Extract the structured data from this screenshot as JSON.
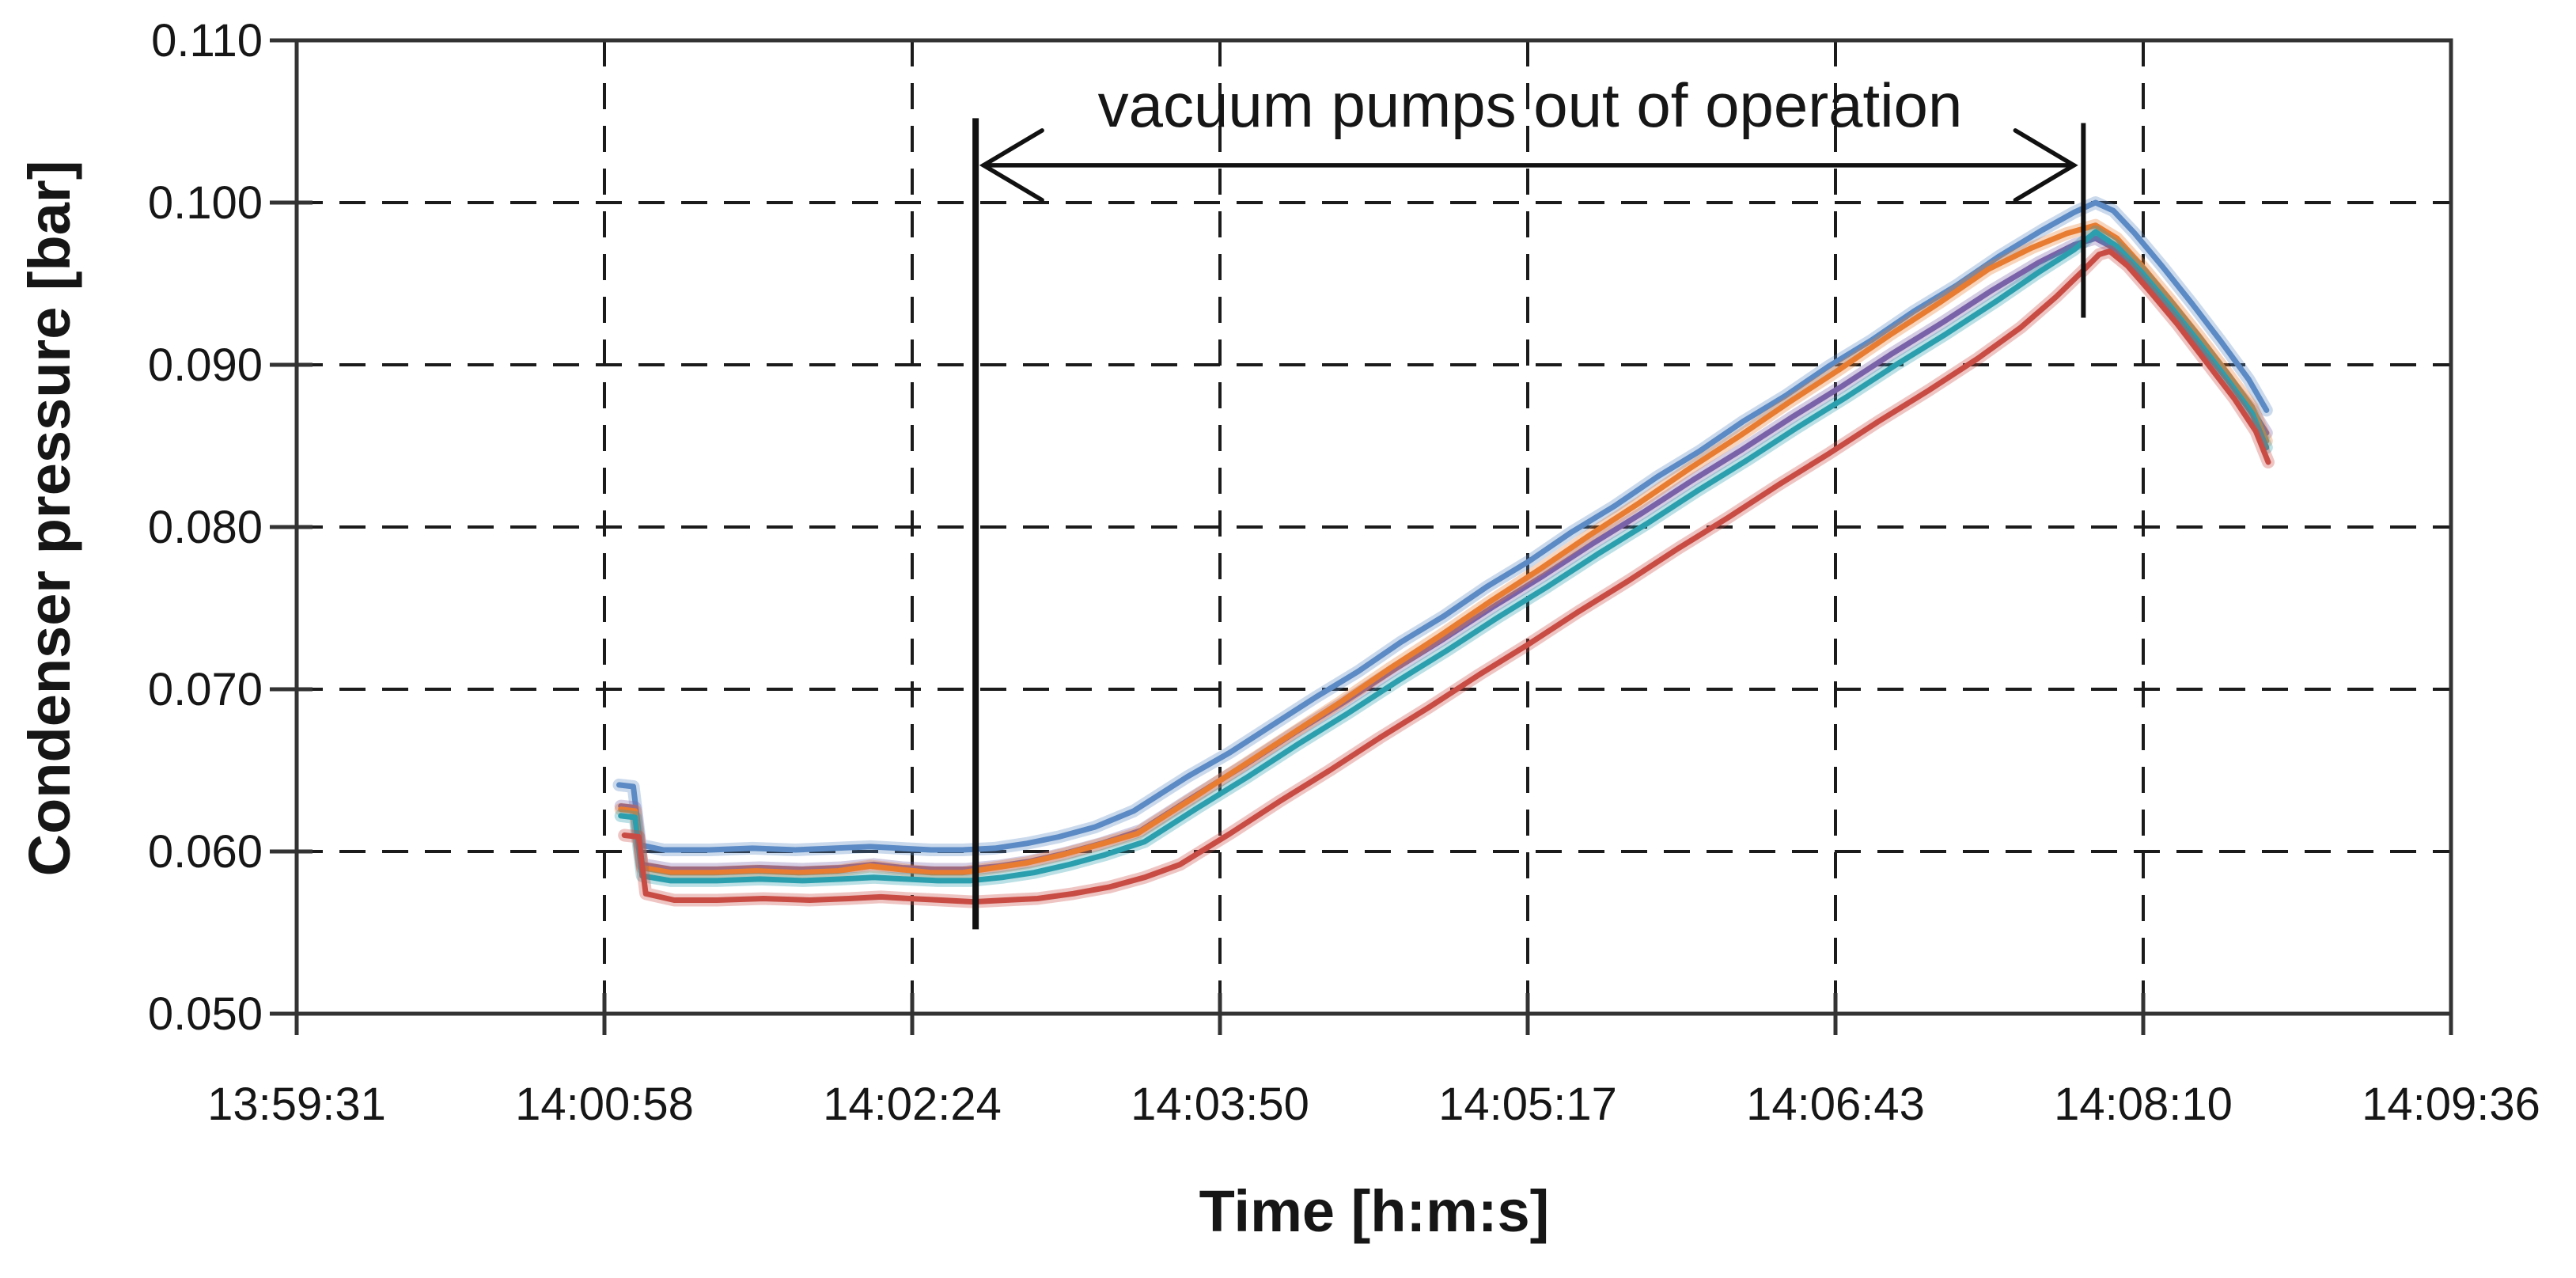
{
  "chart_data": {
    "type": "line",
    "title": "",
    "xlabel": "Time [h:m:s]",
    "ylabel": "Condenser pressure [bar]",
    "legend": "none",
    "grid": "dashed-black",
    "x_axis": {
      "tick_labels": [
        "13:59:31",
        "14:00:58",
        "14:02:24",
        "14:03:50",
        "14:05:17",
        "14:06:43",
        "14:08:10",
        "14:09:36"
      ],
      "tick_seconds": [
        0,
        86.4,
        172.8,
        259.2,
        345.6,
        432.0,
        518.4,
        604.8
      ],
      "range_seconds": [
        0,
        604.8
      ]
    },
    "y_axis": {
      "tick_labels": [
        "0.050",
        "0.060",
        "0.070",
        "0.080",
        "0.090",
        "0.100",
        "0.110"
      ],
      "tick_values": [
        0.05,
        0.06,
        0.07,
        0.08,
        0.09,
        0.1,
        0.11
      ],
      "ylim": [
        0.05,
        0.11
      ]
    },
    "annotation": {
      "label": "vacuum pumps out of operation",
      "label_value_bar": 0.106,
      "arrow_value_bar": 0.1023,
      "span_start_s": 190.6,
      "span_end_s": 501.6,
      "left_line": {
        "s": 190.6,
        "v_top": 0.1052,
        "v_bottom": 0.0552
      },
      "right_line": {
        "s": 501.6,
        "v_top": 0.1049,
        "v_bottom": 0.0929
      }
    },
    "series": [
      {
        "name": "blue",
        "color": "#5b8ac4",
        "points": [
          [
            90.5,
            0.0641
          ],
          [
            94.5,
            0.064
          ],
          [
            96.5,
            0.0604
          ],
          [
            103,
            0.0601
          ],
          [
            116,
            0.0601
          ],
          [
            128,
            0.0602
          ],
          [
            140,
            0.0601
          ],
          [
            151,
            0.0602
          ],
          [
            161,
            0.0603
          ],
          [
            169,
            0.0602
          ],
          [
            178,
            0.0601
          ],
          [
            187,
            0.0601
          ],
          [
            196,
            0.0602
          ],
          [
            205,
            0.0605
          ],
          [
            214,
            0.0609
          ],
          [
            224,
            0.0615
          ],
          [
            235,
            0.0625
          ],
          [
            250,
            0.0646
          ],
          [
            262,
            0.0661
          ],
          [
            274,
            0.0678
          ],
          [
            286,
            0.0695
          ],
          [
            298,
            0.0711
          ],
          [
            310,
            0.0729
          ],
          [
            322,
            0.0745
          ],
          [
            334,
            0.0763
          ],
          [
            346,
            0.0779
          ],
          [
            358,
            0.0797
          ],
          [
            370,
            0.0813
          ],
          [
            382,
            0.0831
          ],
          [
            394,
            0.0847
          ],
          [
            406,
            0.0865
          ],
          [
            418,
            0.0881
          ],
          [
            430,
            0.0899
          ],
          [
            442,
            0.0915
          ],
          [
            454,
            0.0933
          ],
          [
            466,
            0.0949
          ],
          [
            478,
            0.0967
          ],
          [
            490,
            0.0983
          ],
          [
            499,
            0.0994
          ],
          [
            505,
            0.1
          ],
          [
            510,
            0.0995
          ],
          [
            516,
            0.0981
          ],
          [
            524,
            0.096
          ],
          [
            532,
            0.0938
          ],
          [
            540,
            0.0915
          ],
          [
            548,
            0.0891
          ],
          [
            553,
            0.0872
          ]
        ]
      },
      {
        "name": "purple",
        "color": "#7a62a8",
        "points": [
          [
            91,
            0.0628
          ],
          [
            95,
            0.0627
          ],
          [
            97,
            0.0592
          ],
          [
            105,
            0.0589
          ],
          [
            118,
            0.0589
          ],
          [
            130,
            0.059
          ],
          [
            142,
            0.0589
          ],
          [
            153,
            0.059
          ],
          [
            162,
            0.0592
          ],
          [
            170,
            0.059
          ],
          [
            179,
            0.0589
          ],
          [
            188,
            0.0589
          ],
          [
            197,
            0.0591
          ],
          [
            206,
            0.0594
          ],
          [
            216,
            0.0599
          ],
          [
            226,
            0.0605
          ],
          [
            237,
            0.0613
          ],
          [
            252,
            0.0634
          ],
          [
            266,
            0.0653
          ],
          [
            280,
            0.0673
          ],
          [
            294,
            0.0692
          ],
          [
            308,
            0.0712
          ],
          [
            322,
            0.0731
          ],
          [
            336,
            0.0751
          ],
          [
            350,
            0.077
          ],
          [
            364,
            0.079
          ],
          [
            378,
            0.0809
          ],
          [
            392,
            0.0829
          ],
          [
            406,
            0.0848
          ],
          [
            420,
            0.0868
          ],
          [
            434,
            0.0887
          ],
          [
            448,
            0.0907
          ],
          [
            462,
            0.0926
          ],
          [
            476,
            0.0946
          ],
          [
            489,
            0.0963
          ],
          [
            499,
            0.0974
          ],
          [
            505,
            0.0978
          ],
          [
            511,
            0.0971
          ],
          [
            518,
            0.0955
          ],
          [
            526,
            0.0935
          ],
          [
            534,
            0.0913
          ],
          [
            542,
            0.0891
          ],
          [
            549,
            0.0872
          ],
          [
            553,
            0.0858
          ]
        ]
      },
      {
        "name": "orange",
        "color": "#e87c31",
        "points": [
          [
            91,
            0.0626
          ],
          [
            95,
            0.0625
          ],
          [
            97,
            0.059
          ],
          [
            105,
            0.0587
          ],
          [
            117,
            0.0587
          ],
          [
            129,
            0.0588
          ],
          [
            141,
            0.0587
          ],
          [
            152,
            0.0588
          ],
          [
            161,
            0.0591
          ],
          [
            169,
            0.0589
          ],
          [
            178,
            0.0587
          ],
          [
            187,
            0.0587
          ],
          [
            196,
            0.059
          ],
          [
            205,
            0.0593
          ],
          [
            215,
            0.0598
          ],
          [
            225,
            0.0604
          ],
          [
            236,
            0.0611
          ],
          [
            251,
            0.0632
          ],
          [
            265,
            0.0652
          ],
          [
            279,
            0.0672
          ],
          [
            293,
            0.0692
          ],
          [
            307,
            0.0713
          ],
          [
            321,
            0.0733
          ],
          [
            335,
            0.0754
          ],
          [
            349,
            0.0774
          ],
          [
            363,
            0.0795
          ],
          [
            377,
            0.0815
          ],
          [
            391,
            0.0836
          ],
          [
            405,
            0.0856
          ],
          [
            419,
            0.0877
          ],
          [
            433,
            0.0897
          ],
          [
            447,
            0.0918
          ],
          [
            461,
            0.0938
          ],
          [
            475,
            0.0959
          ],
          [
            487,
            0.0972
          ],
          [
            497,
            0.0981
          ],
          [
            505,
            0.0986
          ],
          [
            511,
            0.0978
          ],
          [
            518,
            0.0961
          ],
          [
            526,
            0.094
          ],
          [
            534,
            0.0918
          ],
          [
            542,
            0.0895
          ],
          [
            549,
            0.0874
          ],
          [
            553,
            0.0853
          ]
        ]
      },
      {
        "name": "teal",
        "color": "#2b9fae",
        "points": [
          [
            91,
            0.0622
          ],
          [
            95,
            0.0621
          ],
          [
            97,
            0.0585
          ],
          [
            105,
            0.0582
          ],
          [
            118,
            0.0582
          ],
          [
            130,
            0.0583
          ],
          [
            142,
            0.0582
          ],
          [
            153,
            0.0583
          ],
          [
            162,
            0.0584
          ],
          [
            171,
            0.0583
          ],
          [
            180,
            0.0582
          ],
          [
            189,
            0.0582
          ],
          [
            198,
            0.0584
          ],
          [
            207,
            0.0587
          ],
          [
            217,
            0.0592
          ],
          [
            227,
            0.0598
          ],
          [
            238,
            0.0606
          ],
          [
            253,
            0.0627
          ],
          [
            267,
            0.0646
          ],
          [
            281,
            0.0666
          ],
          [
            295,
            0.0685
          ],
          [
            309,
            0.0705
          ],
          [
            323,
            0.0724
          ],
          [
            337,
            0.0744
          ],
          [
            351,
            0.0763
          ],
          [
            365,
            0.0783
          ],
          [
            379,
            0.0802
          ],
          [
            393,
            0.0822
          ],
          [
            407,
            0.0841
          ],
          [
            421,
            0.0861
          ],
          [
            435,
            0.088
          ],
          [
            449,
            0.09
          ],
          [
            463,
            0.0919
          ],
          [
            477,
            0.0939
          ],
          [
            489,
            0.0957
          ],
          [
            499,
            0.0971
          ],
          [
            505,
            0.0982
          ],
          [
            511,
            0.0973
          ],
          [
            518,
            0.0957
          ],
          [
            526,
            0.0936
          ],
          [
            534,
            0.0914
          ],
          [
            542,
            0.0891
          ],
          [
            549,
            0.087
          ],
          [
            553,
            0.0849
          ]
        ]
      },
      {
        "name": "red",
        "color": "#c94c44",
        "points": [
          [
            92,
            0.061
          ],
          [
            96,
            0.0609
          ],
          [
            98,
            0.0574
          ],
          [
            106,
            0.057
          ],
          [
            118,
            0.057
          ],
          [
            131,
            0.0571
          ],
          [
            144,
            0.057
          ],
          [
            155,
            0.0571
          ],
          [
            164,
            0.0572
          ],
          [
            172,
            0.0571
          ],
          [
            181,
            0.057
          ],
          [
            190,
            0.0569
          ],
          [
            199,
            0.057
          ],
          [
            208,
            0.0571
          ],
          [
            218,
            0.0574
          ],
          [
            228,
            0.0578
          ],
          [
            238,
            0.0584
          ],
          [
            248,
            0.0592
          ],
          [
            262,
            0.0611
          ],
          [
            276,
            0.0631
          ],
          [
            290,
            0.065
          ],
          [
            304,
            0.067
          ],
          [
            318,
            0.0689
          ],
          [
            332,
            0.0709
          ],
          [
            346,
            0.0728
          ],
          [
            360,
            0.0748
          ],
          [
            374,
            0.0767
          ],
          [
            388,
            0.0787
          ],
          [
            402,
            0.0806
          ],
          [
            416,
            0.0826
          ],
          [
            430,
            0.0845
          ],
          [
            444,
            0.0865
          ],
          [
            458,
            0.0884
          ],
          [
            472,
            0.0904
          ],
          [
            484,
            0.0923
          ],
          [
            494,
            0.0942
          ],
          [
            501,
            0.0957
          ],
          [
            506,
            0.0968
          ],
          [
            509,
            0.097
          ],
          [
            514,
            0.0961
          ],
          [
            520,
            0.0946
          ],
          [
            528,
            0.0925
          ],
          [
            536,
            0.0902
          ],
          [
            544,
            0.0879
          ],
          [
            550,
            0.0859
          ],
          [
            553.5,
            0.084
          ]
        ]
      }
    ]
  },
  "style_colors": {
    "frame": "#333333",
    "gridline": "#1b1b1b",
    "annotation_ink": "#111111"
  }
}
